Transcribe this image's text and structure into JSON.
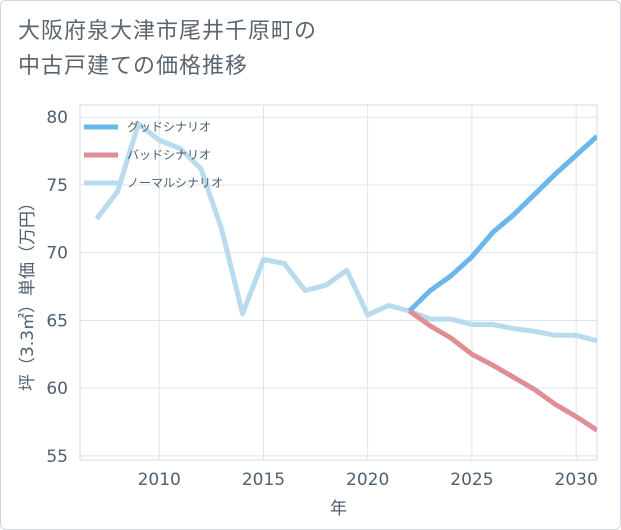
{
  "title_lines": [
    "大阪府泉大津市尾井千原町の",
    "中古戸建ての価格推移"
  ],
  "chart_data": {
    "type": "line",
    "xlabel": "年",
    "ylabel": "坪（3.3㎡）単価（万円）",
    "xlim": [
      2006.2,
      2031
    ],
    "ylim": [
      54.7,
      80.9
    ],
    "xticks": [
      2010,
      2015,
      2020,
      2025,
      2030
    ],
    "yticks": [
      55,
      60,
      65,
      70,
      75,
      80
    ],
    "grid": true,
    "legend_position": "top-left",
    "series": [
      {
        "name": "グッドシナリオ",
        "color": "#6ab7ea",
        "x": [
          2022,
          2023,
          2024,
          2025,
          2026,
          2027,
          2028,
          2029,
          2030,
          2031
        ],
        "y": [
          65.7,
          67.2,
          68.3,
          69.7,
          71.5,
          72.8,
          74.3,
          75.8,
          77.2,
          78.6
        ]
      },
      {
        "name": "バッドシナリオ",
        "color": "#de8f95",
        "x": [
          2022,
          2023,
          2024,
          2025,
          2026,
          2027,
          2028,
          2029,
          2030,
          2031
        ],
        "y": [
          65.7,
          64.6,
          63.7,
          62.5,
          61.7,
          60.8,
          59.9,
          58.8,
          57.9,
          56.9
        ]
      },
      {
        "name": "ノーマルシナリオ",
        "color": "#b8dcee",
        "x": [
          2007,
          2008,
          2009,
          2010,
          2011,
          2012,
          2013,
          2014,
          2015,
          2016,
          2017,
          2018,
          2019,
          2020,
          2021,
          2022,
          2023,
          2024,
          2025,
          2026,
          2027,
          2028,
          2029,
          2030,
          2031
        ],
        "y": [
          72.5,
          74.5,
          79.5,
          78.3,
          77.7,
          76.2,
          71.7,
          65.5,
          69.5,
          69.2,
          67.2,
          67.6,
          68.7,
          65.4,
          66.1,
          65.7,
          65.1,
          65.1,
          64.7,
          64.7,
          64.4,
          64.2,
          63.9,
          63.9,
          63.5
        ]
      }
    ]
  }
}
